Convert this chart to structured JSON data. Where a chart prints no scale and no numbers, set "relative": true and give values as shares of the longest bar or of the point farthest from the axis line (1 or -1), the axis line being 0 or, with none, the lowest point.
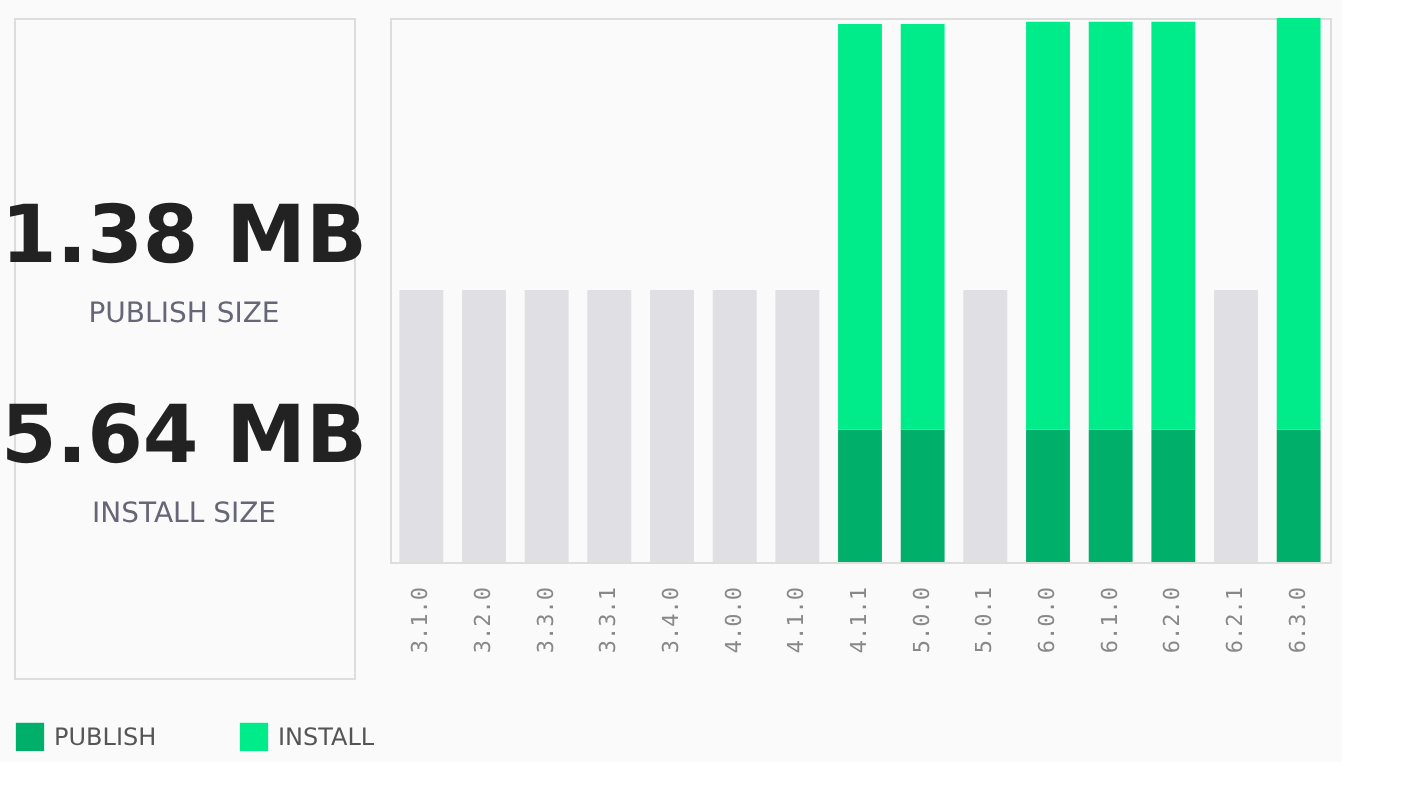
{
  "chart_data": {
    "type": "bar",
    "stacked": true,
    "relative": true,
    "legend": "bottom",
    "grid": false,
    "categories": [
      "3.1.0",
      "3.2.0",
      "3.3.0",
      "3.3.1",
      "3.4.0",
      "4.0.0",
      "4.1.0",
      "4.1.1",
      "5.0.0",
      "5.0.1",
      "6.0.0",
      "6.1.0",
      "6.2.0",
      "6.2.1",
      "6.3.0"
    ],
    "series": [
      {
        "name": "PUBLISH",
        "color": "#00b06a",
        "values": [
          null,
          null,
          null,
          null,
          null,
          null,
          null,
          0.243,
          0.243,
          null,
          0.243,
          0.243,
          0.243,
          null,
          0.243
        ]
      },
      {
        "name": "INSTALL",
        "color": "#00eb8a",
        "values": [
          null,
          null,
          null,
          null,
          null,
          null,
          null,
          0.746,
          0.746,
          null,
          0.75,
          0.75,
          0.75,
          null,
          0.757
        ]
      },
      {
        "color": "#e0e0e4",
        "values": [
          0.5,
          0.5,
          0.5,
          0.5,
          0.5,
          0.5,
          0.5,
          null,
          null,
          0.5,
          null,
          null,
          null,
          0.5,
          null
        ]
      }
    ],
    "annotations": [
      "1.38 MB",
      "PUBLISH SIZE",
      "5.64 MB",
      "INSTALL SIZE"
    ]
  }
}
